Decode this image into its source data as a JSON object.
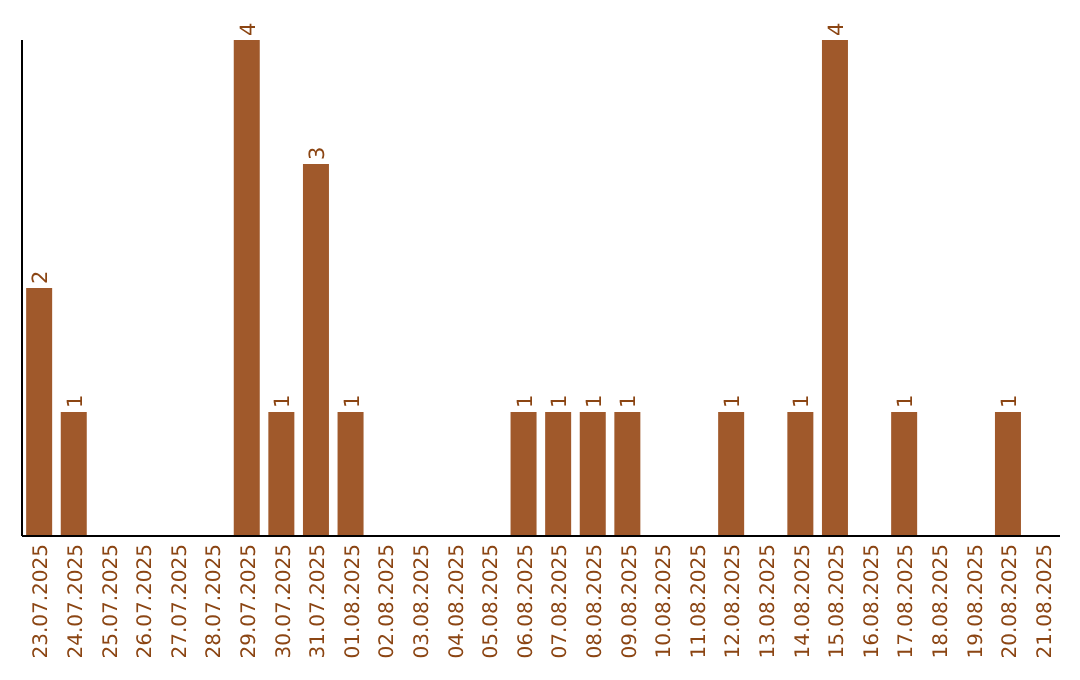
{
  "chart_data": {
    "type": "bar",
    "categories": [
      "23.07.2025",
      "24.07.2025",
      "25.07.2025",
      "26.07.2025",
      "27.07.2025",
      "28.07.2025",
      "29.07.2025",
      "30.07.2025",
      "31.07.2025",
      "01.08.2025",
      "02.08.2025",
      "03.08.2025",
      "04.08.2025",
      "05.08.2025",
      "06.08.2025",
      "07.08.2025",
      "08.08.2025",
      "09.08.2025",
      "10.08.2025",
      "11.08.2025",
      "12.08.2025",
      "13.08.2025",
      "14.08.2025",
      "15.08.2025",
      "16.08.2025",
      "17.08.2025",
      "18.08.2025",
      "19.08.2025",
      "20.08.2025",
      "21.08.2025"
    ],
    "values": [
      2,
      1,
      0,
      0,
      0,
      0,
      4,
      1,
      3,
      1,
      0,
      0,
      0,
      0,
      1,
      1,
      1,
      1,
      0,
      0,
      1,
      0,
      1,
      4,
      0,
      1,
      0,
      0,
      1,
      0
    ],
    "value_labels": [
      "2",
      "1",
      null,
      null,
      null,
      null,
      "4",
      "1",
      "3",
      "1",
      null,
      null,
      null,
      null,
      "1",
      "1",
      "1",
      "1",
      null,
      null,
      "1",
      null,
      "1",
      "4",
      null,
      "1",
      null,
      null,
      "1",
      null
    ],
    "color": "#a0592b",
    "tick_labels": "x"
  }
}
